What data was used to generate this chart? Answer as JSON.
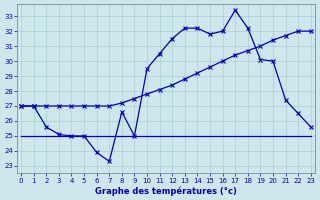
{
  "title": "Graphe des températures (°c)",
  "bg_color": "#cce8ec",
  "grid_color": "#aacccc",
  "line_color": "#0000bb",
  "x_ticks": [
    0,
    1,
    2,
    3,
    4,
    5,
    6,
    7,
    8,
    9,
    10,
    11,
    12,
    13,
    14,
    15,
    16,
    17,
    18,
    19,
    20,
    21,
    22,
    23
  ],
  "y_ticks": [
    23,
    24,
    25,
    26,
    27,
    28,
    29,
    30,
    31,
    32,
    33
  ],
  "ylim": [
    22.5,
    33.8
  ],
  "xlim": [
    -0.3,
    23.3
  ],
  "line_diagonal": {
    "x": [
      0,
      1,
      2,
      3,
      4,
      5,
      6,
      7,
      8,
      9,
      10,
      11,
      12,
      13,
      14,
      15,
      16,
      17,
      18,
      19,
      20,
      21,
      22,
      23
    ],
    "y": [
      27.0,
      27.0,
      27.0,
      27.0,
      27.0,
      27.0,
      27.0,
      27.0,
      27.2,
      27.5,
      27.8,
      28.1,
      28.4,
      28.8,
      29.2,
      29.6,
      30.0,
      30.4,
      30.7,
      31.0,
      31.4,
      31.7,
      32.0,
      32.0
    ]
  },
  "line_wavy": {
    "x": [
      0,
      1,
      2,
      3,
      4,
      5,
      6,
      7,
      8,
      9,
      10,
      11,
      12,
      13,
      14,
      15,
      16,
      17,
      18,
      19,
      20,
      21,
      22,
      23
    ],
    "y": [
      27.0,
      27.0,
      25.6,
      25.1,
      25.0,
      25.0,
      23.9,
      23.3,
      26.6,
      25.0,
      29.5,
      30.5,
      31.5,
      32.2,
      32.2,
      31.8,
      32.0,
      33.4,
      32.2,
      30.1,
      30.0,
      27.4,
      26.5,
      25.6
    ]
  },
  "line_flat": {
    "x": [
      0,
      1,
      2,
      3,
      4,
      5,
      6,
      7,
      8,
      9,
      10,
      11,
      12,
      13,
      14,
      15,
      16,
      17,
      18,
      19,
      20,
      21,
      22,
      23
    ],
    "y": [
      25.0,
      25.0,
      25.0,
      25.0,
      25.0,
      25.0,
      25.0,
      25.0,
      25.0,
      25.0,
      25.0,
      25.0,
      25.0,
      25.0,
      25.0,
      25.0,
      25.0,
      25.0,
      25.0,
      25.0,
      25.0,
      25.0,
      25.0,
      25.0
    ]
  }
}
